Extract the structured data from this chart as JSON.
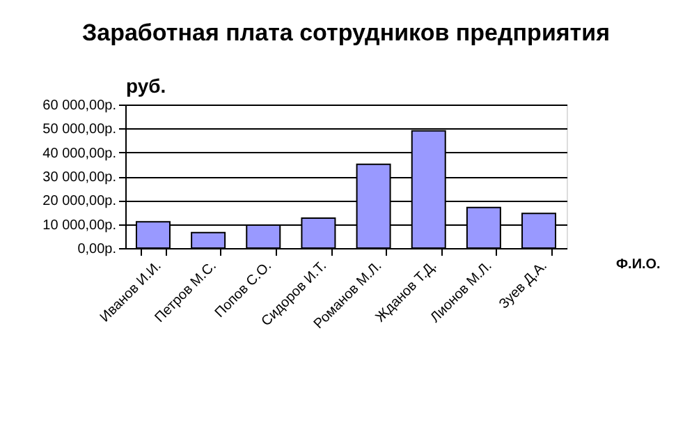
{
  "chart_data": {
    "type": "bar",
    "title": "Заработная плата сотрудников предприятия",
    "xlabel": "Ф.И.О.",
    "ylabel": "руб.",
    "categories": [
      "Иванов И.И.",
      "Петров М.С.",
      "Попов С.О.",
      "Сидоров И.Т.",
      "Романов М.Л.",
      "Жданов Т.Д.",
      "Лионов М.Л.",
      "Зуев Д.А."
    ],
    "values": [
      11000,
      6500,
      9600,
      12500,
      35000,
      49000,
      17000,
      14500
    ],
    "color": "#9999ff",
    "ylim": [
      0,
      60000
    ],
    "yticks": [
      {
        "value": 0,
        "label": "0,00р."
      },
      {
        "value": 10000,
        "label": "10 000,00р."
      },
      {
        "value": 20000,
        "label": "20 000,00р."
      },
      {
        "value": 30000,
        "label": "30 000,00р."
      },
      {
        "value": 40000,
        "label": "40 000,00р."
      },
      {
        "value": 50000,
        "label": "50 000,00р."
      },
      {
        "value": 60000,
        "label": "60 000,00р."
      }
    ],
    "grid": "y"
  }
}
